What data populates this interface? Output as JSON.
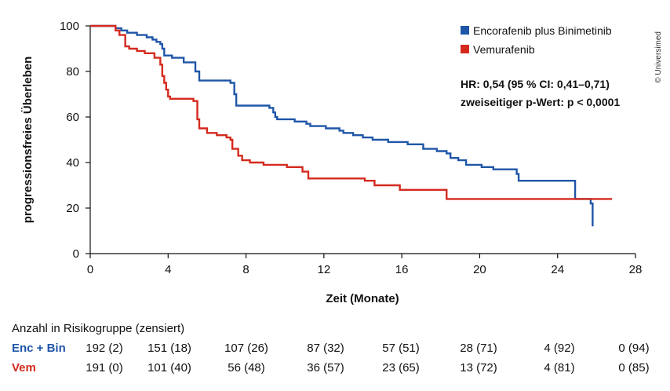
{
  "credit": "© Universimed",
  "chart_data": {
    "type": "line",
    "xlabel": "Zeit (Monate)",
    "ylabel": "progressionsfreies Überleben",
    "xlim": [
      0,
      28
    ],
    "ylim": [
      0,
      100
    ],
    "xticks": [
      0,
      4,
      8,
      12,
      16,
      20,
      24,
      28
    ],
    "yticks": [
      0,
      20,
      40,
      60,
      80,
      100
    ],
    "legend_position": "top-right",
    "annotations": [
      "HR: 0,54 (95 % CI: 0,41–0,71)",
      "zweiseitiger p-Wert: p < 0,0001"
    ],
    "series": [
      {
        "name": "Encorafenib plus Binimetinib",
        "color": "#1f56a8",
        "x": [
          0,
          1.3,
          1.6,
          1.9,
          2.4,
          2.9,
          3.2,
          3.4,
          3.6,
          3.7,
          3.8,
          4.2,
          4.8,
          5.4,
          5.6,
          7.2,
          7.4,
          7.5,
          9.2,
          9.4,
          9.5,
          9.6,
          10.5,
          11.1,
          11.3,
          11.6,
          12.1,
          12.4,
          12.8,
          13.0,
          13.5,
          14.0,
          14.5,
          15.3,
          16.3,
          17.1,
          17.8,
          18.3,
          18.5,
          18.9,
          19.3,
          20.1,
          20.7,
          21.9,
          22.0,
          24.8,
          24.9,
          25.7,
          25.7,
          25.8
        ],
        "y": [
          100,
          99,
          98,
          97,
          96,
          95,
          94,
          93,
          92,
          90,
          87,
          86,
          84,
          80,
          76,
          75,
          70,
          65,
          64,
          62,
          60,
          59,
          58,
          57,
          56,
          56,
          55,
          55,
          54,
          53,
          52,
          51,
          50,
          49,
          48,
          46,
          45,
          44,
          42,
          41,
          39,
          38,
          37,
          35,
          32,
          32,
          24,
          24,
          22,
          12
        ]
      },
      {
        "name": "Vemurafenib",
        "color": "#d42a1e",
        "x": [
          0,
          1.3,
          1.5,
          1.8,
          2.0,
          2.4,
          2.8,
          3.3,
          3.6,
          3.7,
          3.8,
          3.9,
          4.0,
          4.1,
          5.3,
          5.5,
          5.6,
          6.0,
          6.5,
          7.0,
          7.2,
          7.3,
          7.6,
          7.8,
          8.2,
          8.9,
          9.3,
          10.1,
          10.9,
          11.2,
          12.7,
          13.8,
          14.1,
          14.6,
          15.9,
          16.3,
          17.7,
          18.3,
          26.8
        ],
        "y": [
          100,
          98,
          96,
          91,
          90,
          89,
          88,
          86,
          83,
          78,
          75,
          72,
          69,
          68,
          67,
          59,
          55,
          53,
          52,
          51,
          50,
          46,
          43,
          41,
          40,
          39,
          39,
          38,
          36,
          33,
          33,
          33,
          32,
          30,
          28,
          28,
          28,
          24,
          24
        ]
      }
    ]
  },
  "risk_table": {
    "title": "Anzahl in Risikogruppe (zensiert)",
    "rows": [
      {
        "label": "Enc + Bin",
        "color": "#1f56a8",
        "values": [
          "192 (2)",
          "151 (18)",
          "107 (26)",
          "87 (32)",
          "57 (51)",
          "28 (71)",
          "4 (92)",
          "0 (94)"
        ]
      },
      {
        "label": "Vem",
        "color": "#d42a1e",
        "values": [
          "191 (0)",
          "101 (40)",
          "56 (48)",
          "36 (57)",
          "23 (65)",
          "13 (72)",
          "4 (81)",
          "0 (85)"
        ]
      }
    ]
  }
}
